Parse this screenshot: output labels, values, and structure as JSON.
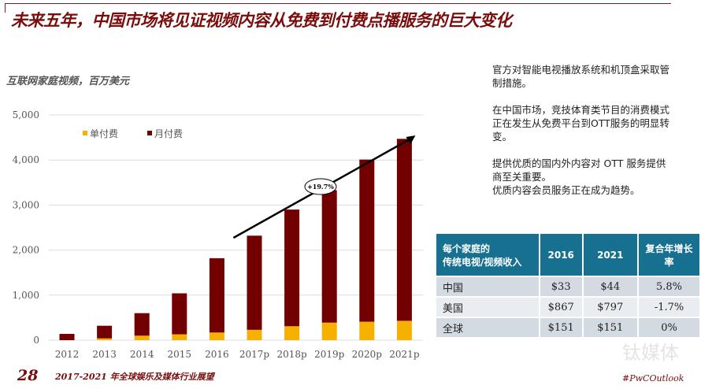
{
  "title": "未来五年，中国市场将见证视频内容从免费到付费点播服务的巨大变化",
  "subtitle": "互联网家庭视频，百万美元",
  "notes": [
    "官方对智能电视播放系统和机顶盒采取管制措施。",
    "在中国市场，竞技体育类节目的消费模式正在发生从免费平台到OTT服务的明显转变。",
    "提供优质的国内外内容对 OTT 服务提供商至关重要。\n优质内容会员服务正在成为趋势。"
  ],
  "chart_data": {
    "type": "bar",
    "stacked": true,
    "categories": [
      "2012",
      "2013",
      "2014",
      "2015",
      "2016",
      "2017p",
      "2018p",
      "2019p",
      "2020p",
      "2021p"
    ],
    "series": [
      {
        "name": "单付费",
        "color": "#f5b000",
        "values": [
          0,
          40,
          100,
          130,
          170,
          230,
          310,
          390,
          410,
          430
        ]
      },
      {
        "name": "月付费",
        "color": "#730000",
        "values": [
          140,
          280,
          500,
          910,
          1650,
          2090,
          2590,
          2940,
          3600,
          4040
        ]
      }
    ],
    "ylim": [
      0,
      5000
    ],
    "yticks": [
      "0",
      "1,000",
      "2,000",
      "3,000",
      "4,000",
      "5,000"
    ],
    "grid": true,
    "legend": "top-left",
    "annotation": {
      "text": "+19.7%",
      "from": "2016",
      "to": "2021p"
    }
  },
  "table": {
    "headers": [
      "每个家庭的\n传统电视/视频收入",
      "2016",
      "2021",
      "复合年增长率"
    ],
    "rows": [
      [
        "中国",
        "$33",
        "$44",
        "5.8%"
      ],
      [
        "美国",
        "$867",
        "$797",
        "-1.7%"
      ],
      [
        "全球",
        "$151",
        "$151",
        "0%"
      ]
    ]
  },
  "footer": {
    "page": "28",
    "text": "2017-2021 年全球娱乐及媒体行业展望",
    "hashtag": "#PwCOutlook",
    "watermark": "钛媒体"
  }
}
